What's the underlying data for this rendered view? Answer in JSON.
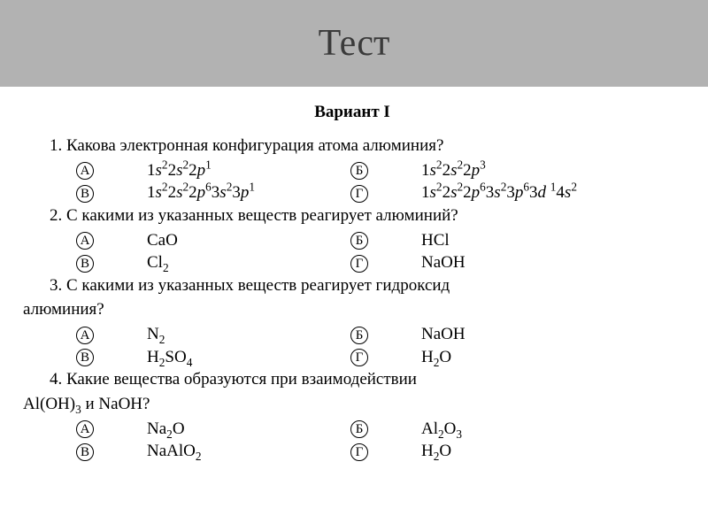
{
  "colors": {
    "header_bg": "#b2b2b2",
    "title_color": "#3a3a3a",
    "text_color": "#000000",
    "page_bg": "#ffffff"
  },
  "title": "Тест",
  "variant": "Вариант  I",
  "questions": [
    {
      "num": "1.",
      "text": "Какова электронная конфигурация атома алюминия?",
      "options": {
        "A": "1s²2s²2p¹",
        "B": "1s²2s²2p³",
        "V": "1s²2s²2p⁶3s²3p¹",
        "G": "1s²2s²2p⁶3s²3p⁶3d¹4s²"
      }
    },
    {
      "num": "2.",
      "text": "С какими из указанных веществ реагирует алюминий?",
      "options": {
        "A": "CaO",
        "B": "HCl",
        "V": "Cl₂",
        "G": "NaOH"
      }
    },
    {
      "num": "3.",
      "text": "С какими из указанных веществ реагирует гидроксид",
      "text2": "алюминия?",
      "options": {
        "A": "N₂",
        "B": "NaOH",
        "V": "H₂SO₄",
        "G": "H₂O"
      }
    },
    {
      "num": "4.",
      "text": "Какие вещества образуются при взаимодействии",
      "text2_html": "Al(OH)₃ и NaOH?",
      "options": {
        "A": "Na₂O",
        "B": "Al₂O₃",
        "V": "NaAlO₂",
        "G": "H₂O"
      }
    }
  ],
  "labels": {
    "A": "А",
    "B": "Б",
    "V": "В",
    "G": "Г"
  }
}
